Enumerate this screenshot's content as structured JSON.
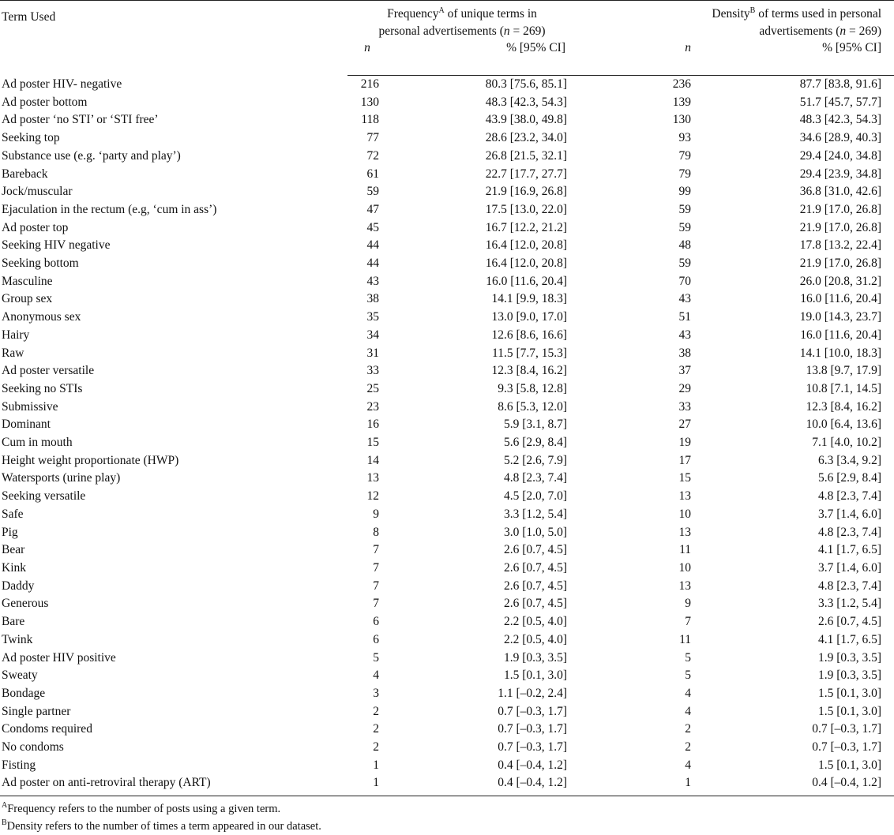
{
  "header": {
    "term_col": "Term Used",
    "freq_pre": "Frequency",
    "freq_sup": "A",
    "freq_line1_rest": " of unique terms in",
    "freq_line2": "personal advertisements (",
    "freq_n": "n",
    "freq_eq": " = 269)",
    "dens_pre": "Density",
    "dens_sup": "B",
    "dens_line1_rest": " of terms used in personal",
    "dens_line2": "advertisements (",
    "dens_n": "n",
    "dens_eq": " = 269)",
    "sub_n": "n",
    "sub_pct": "% [95% CI]"
  },
  "rows": [
    {
      "term": "Ad poster HIV- negative",
      "n1": "216",
      "p1": "80.3 [75.6, 85.1]",
      "n2": "236",
      "p2": "87.7 [83.8, 91.6]"
    },
    {
      "term": "Ad poster bottom",
      "n1": "130",
      "p1": "48.3 [42.3, 54.3]",
      "n2": "139",
      "p2": "51.7 [45.7, 57.7]"
    },
    {
      "term": "Ad poster ‘no STI’ or ‘STI free’",
      "n1": "118",
      "p1": "43.9 [38.0, 49.8]",
      "n2": "130",
      "p2": "48.3 [42.3, 54.3]"
    },
    {
      "term": "Seeking top",
      "n1": "77",
      "p1": "28.6 [23.2, 34.0]",
      "n2": "93",
      "p2": "34.6 [28.9, 40.3]"
    },
    {
      "term": "Substance use (e.g. ‘party and play’)",
      "n1": "72",
      "p1": "26.8 [21.5, 32.1]",
      "n2": "79",
      "p2": "29.4 [24.0, 34.8]"
    },
    {
      "term": "Bareback",
      "n1": "61",
      "p1": "22.7 [17.7, 27.7]",
      "n2": "79",
      "p2": "29.4 [23.9, 34.8]"
    },
    {
      "term": "Jock/muscular",
      "n1": "59",
      "p1": "21.9 [16.9, 26.8]",
      "n2": "99",
      "p2": "36.8 [31.0, 42.6]"
    },
    {
      "term": "Ejaculation in the rectum (e.g, ‘cum in ass’)",
      "n1": "47",
      "p1": "17.5 [13.0, 22.0]",
      "n2": "59",
      "p2": "21.9 [17.0, 26.8]"
    },
    {
      "term": "Ad poster top",
      "n1": "45",
      "p1": "16.7 [12.2, 21.2]",
      "n2": "59",
      "p2": "21.9 [17.0, 26.8]"
    },
    {
      "term": "Seeking HIV negative",
      "n1": "44",
      "p1": "16.4 [12.0, 20.8]",
      "n2": "48",
      "p2": "17.8 [13.2, 22.4]"
    },
    {
      "term": "Seeking bottom",
      "n1": "44",
      "p1": "16.4 [12.0, 20.8]",
      "n2": "59",
      "p2": "21.9 [17.0, 26.8]"
    },
    {
      "term": "Masculine",
      "n1": "43",
      "p1": "16.0 [11.6, 20.4]",
      "n2": "70",
      "p2": "26.0 [20.8, 31.2]"
    },
    {
      "term": "Group sex",
      "n1": "38",
      "p1": "14.1 [9.9, 18.3]",
      "n2": "43",
      "p2": "16.0 [11.6, 20.4]"
    },
    {
      "term": "Anonymous sex",
      "n1": "35",
      "p1": "13.0 [9.0, 17.0]",
      "n2": "51",
      "p2": "19.0 [14.3, 23.7]"
    },
    {
      "term": "Hairy",
      "n1": "34",
      "p1": "12.6 [8.6, 16.6]",
      "n2": "43",
      "p2": "16.0 [11.6, 20.4]"
    },
    {
      "term": "Raw",
      "n1": "31",
      "p1": "11.5 [7.7, 15.3]",
      "n2": "38",
      "p2": "14.1 [10.0, 18.3]"
    },
    {
      "term": "Ad poster versatile",
      "n1": "33",
      "p1": "12.3 [8.4, 16.2]",
      "n2": "37",
      "p2": "13.8 [9.7, 17.9]"
    },
    {
      "term": "Seeking no STIs",
      "n1": "25",
      "p1": "9.3 [5.8, 12.8]",
      "n2": "29",
      "p2": "10.8 [7.1, 14.5]"
    },
    {
      "term": "Submissive",
      "n1": "23",
      "p1": "8.6 [5.3, 12.0]",
      "n2": "33",
      "p2": "12.3 [8.4, 16.2]"
    },
    {
      "term": "Dominant",
      "n1": "16",
      "p1": "5.9 [3.1, 8.7]",
      "n2": "27",
      "p2": "10.0 [6.4, 13.6]"
    },
    {
      "term": "Cum in mouth",
      "n1": "15",
      "p1": "5.6 [2.9, 8.4]",
      "n2": "19",
      "p2": "7.1 [4.0, 10.2]"
    },
    {
      "term": "Height weight proportionate (HWP)",
      "n1": "14",
      "p1": "5.2 [2.6, 7.9]",
      "n2": "17",
      "p2": "6.3 [3.4, 9.2]"
    },
    {
      "term": "Watersports (urine play)",
      "n1": "13",
      "p1": "4.8 [2.3, 7.4]",
      "n2": "15",
      "p2": "5.6 [2.9, 8.4]"
    },
    {
      "term": "Seeking versatile",
      "n1": "12",
      "p1": "4.5 [2.0, 7.0]",
      "n2": "13",
      "p2": "4.8 [2.3, 7.4]"
    },
    {
      "term": "Safe",
      "n1": "9",
      "p1": "3.3 [1.2, 5.4]",
      "n2": "10",
      "p2": "3.7 [1.4, 6.0]"
    },
    {
      "term": "Pig",
      "n1": "8",
      "p1": "3.0 [1.0, 5.0]",
      "n2": "13",
      "p2": "4.8 [2.3, 7.4]"
    },
    {
      "term": "Bear",
      "n1": "7",
      "p1": "2.6 [0.7, 4.5]",
      "n2": "11",
      "p2": "4.1 [1.7, 6.5]"
    },
    {
      "term": "Kink",
      "n1": "7",
      "p1": "2.6 [0.7, 4.5]",
      "n2": "10",
      "p2": "3.7 [1.4, 6.0]"
    },
    {
      "term": "Daddy",
      "n1": "7",
      "p1": "2.6 [0.7, 4.5]",
      "n2": "13",
      "p2": "4.8 [2.3, 7.4]"
    },
    {
      "term": "Generous",
      "n1": "7",
      "p1": "2.6 [0.7, 4.5]",
      "n2": "9",
      "p2": "3.3 [1.2, 5.4]"
    },
    {
      "term": "Bare",
      "n1": "6",
      "p1": "2.2 [0.5, 4.0]",
      "n2": "7",
      "p2": "2.6 [0.7, 4.5]"
    },
    {
      "term": "Twink",
      "n1": "6",
      "p1": "2.2 [0.5, 4.0]",
      "n2": "11",
      "p2": "4.1 [1.7, 6.5]"
    },
    {
      "term": "Ad poster HIV positive",
      "n1": "5",
      "p1": "1.9 [0.3, 3.5]",
      "n2": "5",
      "p2": "1.9 [0.3, 3.5]"
    },
    {
      "term": "Sweaty",
      "n1": "4",
      "p1": "1.5 [0.1, 3.0]",
      "n2": "5",
      "p2": "1.9 [0.3, 3.5]"
    },
    {
      "term": "Bondage",
      "n1": "3",
      "p1": "1.1 [–0.2, 2.4]",
      "n2": "4",
      "p2": "1.5 [0.1, 3.0]"
    },
    {
      "term": "Single partner",
      "n1": "2",
      "p1": "0.7 [–0.3, 1.7]",
      "n2": "4",
      "p2": "1.5 [0.1, 3.0]"
    },
    {
      "term": "Condoms required",
      "n1": "2",
      "p1": "0.7 [–0.3, 1.7]",
      "n2": "2",
      "p2": "0.7 [–0.3, 1.7]"
    },
    {
      "term": "No condoms",
      "n1": "2",
      "p1": "0.7 [–0.3, 1.7]",
      "n2": "2",
      "p2": "0.7 [–0.3, 1.7]"
    },
    {
      "term": "Fisting",
      "n1": "1",
      "p1": "0.4 [–0.4, 1.2]",
      "n2": "4",
      "p2": "1.5 [0.1, 3.0]"
    },
    {
      "term": "Ad poster on anti-retroviral therapy (ART)",
      "n1": "1",
      "p1": "0.4 [–0.4, 1.2]",
      "n2": "1",
      "p2": "0.4 [–0.4, 1.2]"
    }
  ],
  "footnotes": [
    {
      "mark": "A",
      "text": "Frequency refers to the number of posts using a given term."
    },
    {
      "mark": "B",
      "text": "Density refers to the number of times a term appeared in our dataset."
    }
  ]
}
